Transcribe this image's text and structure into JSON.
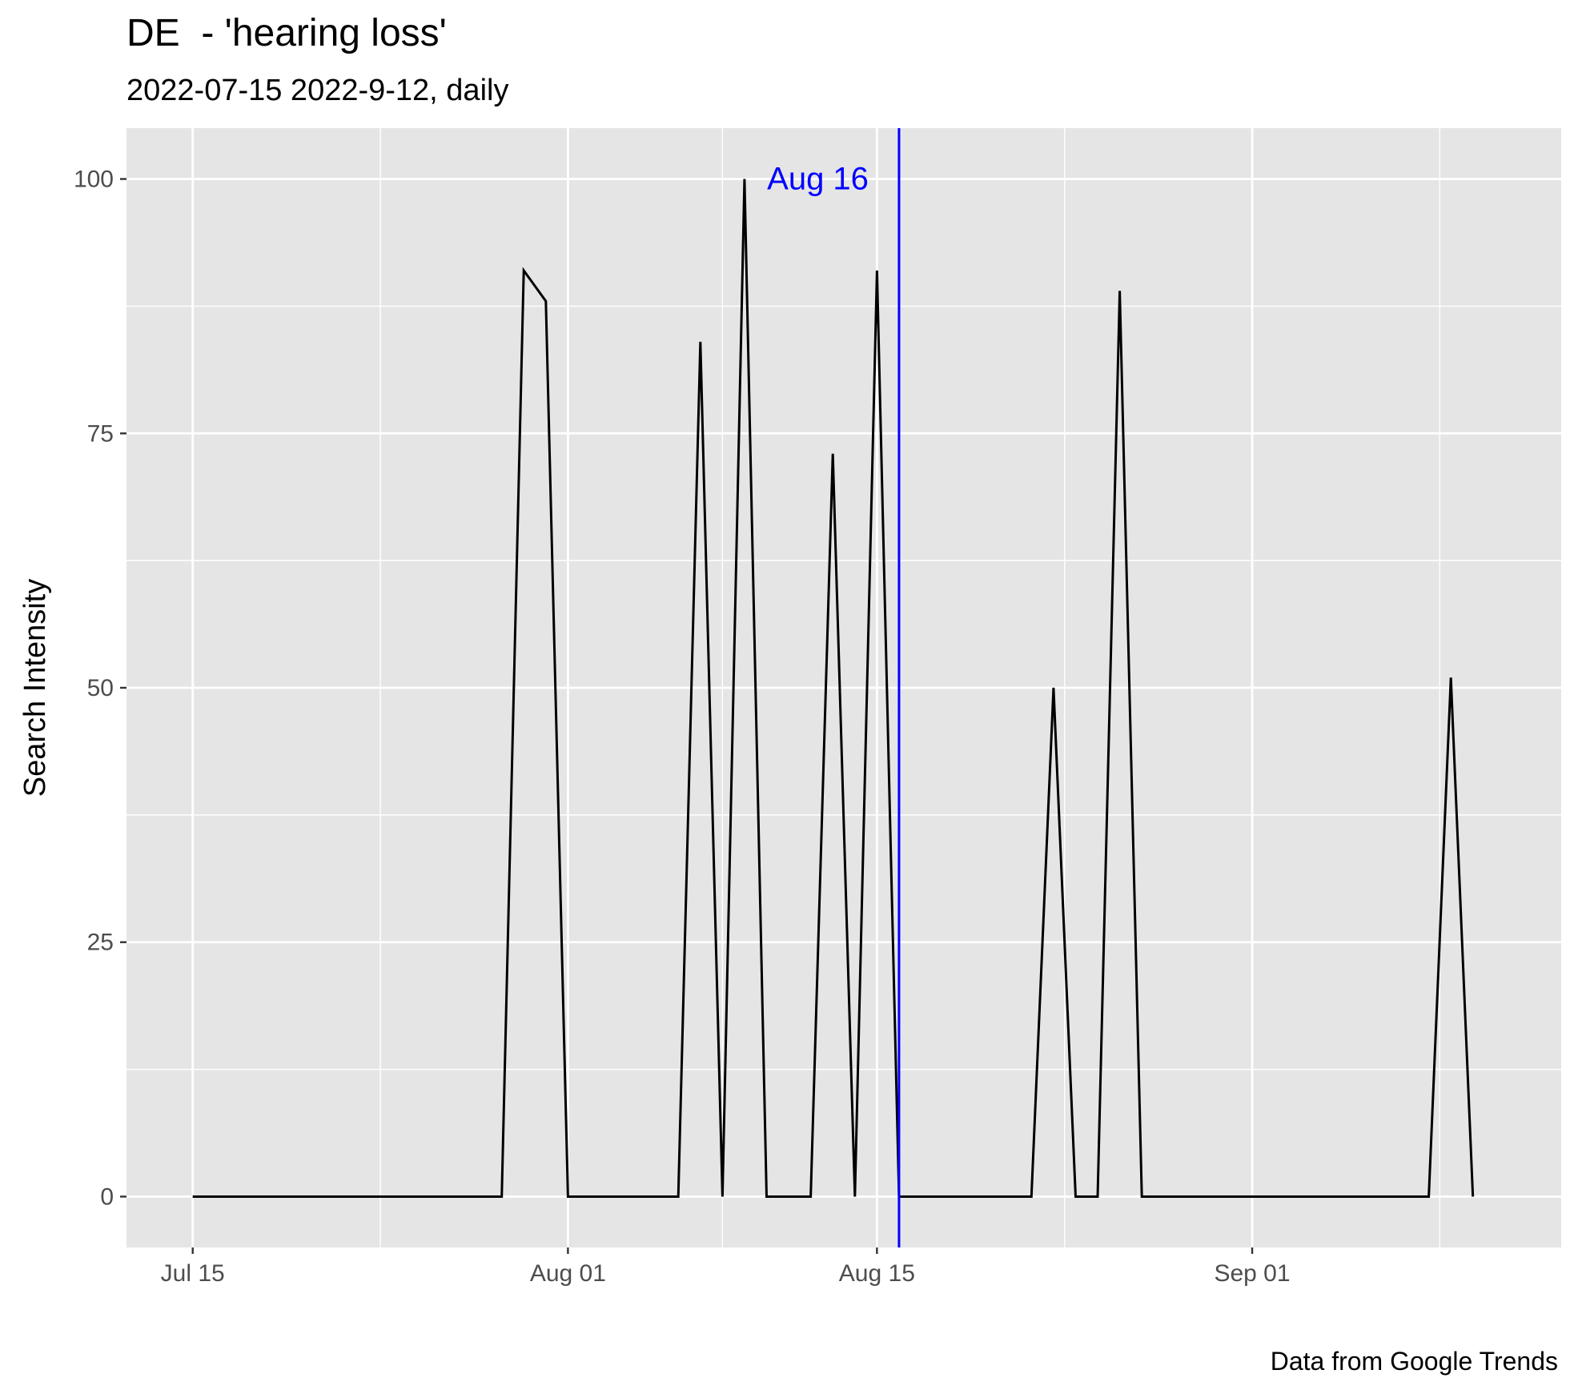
{
  "chart_data": {
    "type": "line",
    "title": "DE  - 'hearing loss'",
    "subtitle": "2022-07-15 2022-9-12, daily",
    "caption": "Data from Google Trends",
    "xlabel": "",
    "ylabel": "Search Intensity",
    "x_start": "2022-07-15",
    "x_end": "2022-09-12",
    "xlim_days": [
      -3,
      62
    ],
    "ylim": [
      -5,
      105
    ],
    "y_ticks": [
      0,
      25,
      50,
      75,
      100
    ],
    "x_ticks": [
      {
        "day": 0,
        "label": "Jul 15"
      },
      {
        "day": 17,
        "label": "Aug 01"
      },
      {
        "day": 31,
        "label": "Aug 15"
      },
      {
        "day": 48,
        "label": "Sep 01"
      }
    ],
    "grid": true,
    "series": [
      {
        "name": "hearing loss",
        "color": "#000000",
        "values": [
          0,
          0,
          0,
          0,
          0,
          0,
          0,
          0,
          0,
          0,
          0,
          0,
          0,
          0,
          0,
          91,
          88,
          0,
          0,
          0,
          0,
          0,
          0,
          84,
          0,
          100,
          0,
          0,
          0,
          73,
          0,
          91,
          0,
          0,
          0,
          0,
          0,
          0,
          0,
          50,
          0,
          0,
          89,
          0,
          0,
          0,
          0,
          0,
          0,
          0,
          0,
          0,
          0,
          0,
          0,
          0,
          0,
          51,
          0
        ]
      }
    ],
    "annotations": [
      {
        "type": "vline",
        "day": 32,
        "label": "Aug 16",
        "label_y": 100,
        "color": "#0000ff"
      }
    ]
  }
}
